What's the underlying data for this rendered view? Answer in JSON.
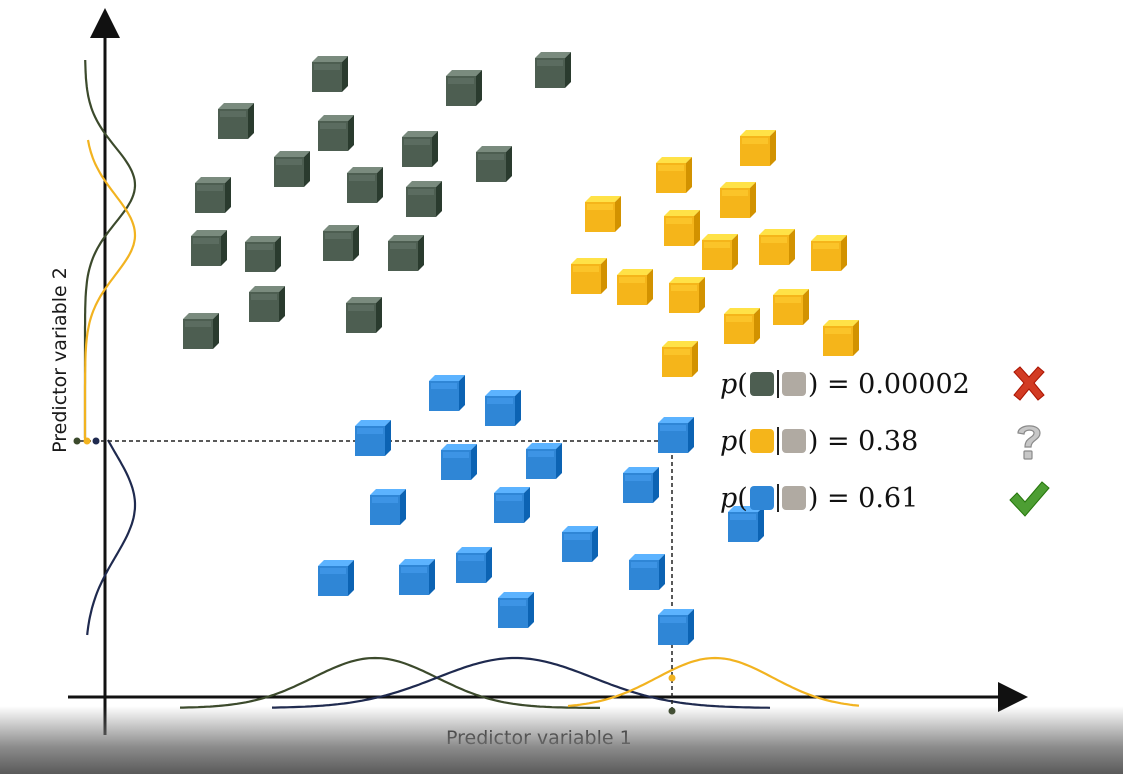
{
  "axes": {
    "xlabel": "Predictor variable 1",
    "ylabel": "Predictor variable 2"
  },
  "colors": {
    "dark_green": "#4d5e51",
    "yellow": "#f5b51a",
    "blue": "#2f86d6",
    "gray_query": "#b0aaa2",
    "curve_green": "#3c4a2c",
    "curve_navy": "#1f2a4f",
    "curve_yellow": "#f2b320",
    "red_x": "#d23b23",
    "green_check": "#4d9e33"
  },
  "probabilities": [
    {
      "class_color": "dark_green",
      "eq": ") = 0.00002",
      "status": "red-x-icon"
    },
    {
      "class_color": "yellow",
      "eq": ") = 0.38",
      "status": "question-icon"
    },
    {
      "class_color": "blue",
      "eq": ") = 0.61",
      "status": "green-check-icon"
    }
  ],
  "p_symbol": "p",
  "open_paren": "("
}
